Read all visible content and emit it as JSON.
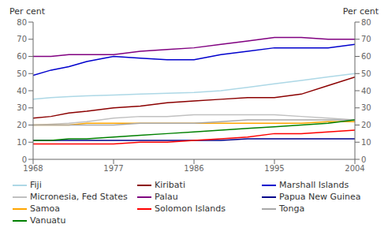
{
  "chart_data": {
    "type": "line",
    "ylabel": "Per cent",
    "y2label": "Per cent",
    "x": [
      1968,
      1970,
      1972,
      1974,
      1977,
      1980,
      1983,
      1986,
      1989,
      1992,
      1995,
      1998,
      2001,
      2004
    ],
    "xlim": [
      1968,
      2004
    ],
    "xticks": [
      1968,
      1977,
      1986,
      1995,
      2004
    ],
    "ylim": [
      0,
      80
    ],
    "yticks": [
      0,
      10,
      20,
      30,
      40,
      50,
      60,
      70,
      80
    ],
    "y2lim": [
      0,
      80
    ],
    "y2ticks": [
      0,
      10,
      20,
      30,
      40,
      50,
      60,
      70,
      80
    ],
    "grid": false,
    "legend": "bottom",
    "series": [
      {
        "name": "Fiji",
        "color": "#add8e6",
        "values": [
          35,
          36,
          36.5,
          37,
          37.5,
          38,
          38.5,
          39,
          40,
          42,
          44,
          46,
          48,
          50
        ]
      },
      {
        "name": "Kiribati",
        "color": "#8b0000",
        "values": [
          24,
          25,
          27,
          28,
          30,
          31,
          33,
          34,
          35,
          36,
          36,
          38,
          43,
          48
        ]
      },
      {
        "name": "Marshall Islands",
        "color": "#0000cd",
        "values": [
          49,
          52,
          54,
          57,
          60,
          59,
          58,
          58,
          61,
          63,
          65,
          65,
          65,
          67
        ]
      },
      {
        "name": "Micronesia, Fed States",
        "color": "#c0c0c0",
        "values": [
          20,
          20.5,
          21,
          22,
          24,
          25,
          25,
          26,
          26,
          26,
          26,
          25,
          24,
          23
        ]
      },
      {
        "name": "Palau",
        "color": "#800080",
        "values": [
          60,
          60,
          61,
          61,
          61,
          63,
          64,
          65,
          67,
          69,
          71,
          71,
          70,
          70
        ]
      },
      {
        "name": "Papua New Guinea",
        "color": "#00008b",
        "values": [
          11,
          11,
          11,
          11,
          11,
          11,
          11,
          11,
          11,
          12,
          12,
          12,
          12,
          12
        ]
      },
      {
        "name": "Samoa",
        "color": "#ffa500",
        "values": [
          20,
          20,
          20,
          21,
          21,
          21,
          21,
          21,
          21,
          21,
          21,
          21,
          22,
          22
        ]
      },
      {
        "name": "Solomon Islands",
        "color": "#ff0000",
        "values": [
          9,
          9,
          9,
          9,
          9,
          10,
          10,
          11,
          12,
          13,
          15,
          15,
          16,
          17
        ]
      },
      {
        "name": "Tonga",
        "color": "#a9a9a9",
        "values": [
          20,
          20,
          20,
          20,
          20,
          21,
          21,
          21,
          22,
          23,
          23,
          23,
          23,
          23
        ]
      },
      {
        "name": "Vanuatu",
        "color": "#008000",
        "values": [
          11,
          11,
          12,
          12,
          13,
          14,
          15,
          16,
          17,
          18,
          19,
          20,
          21,
          23
        ]
      }
    ]
  }
}
